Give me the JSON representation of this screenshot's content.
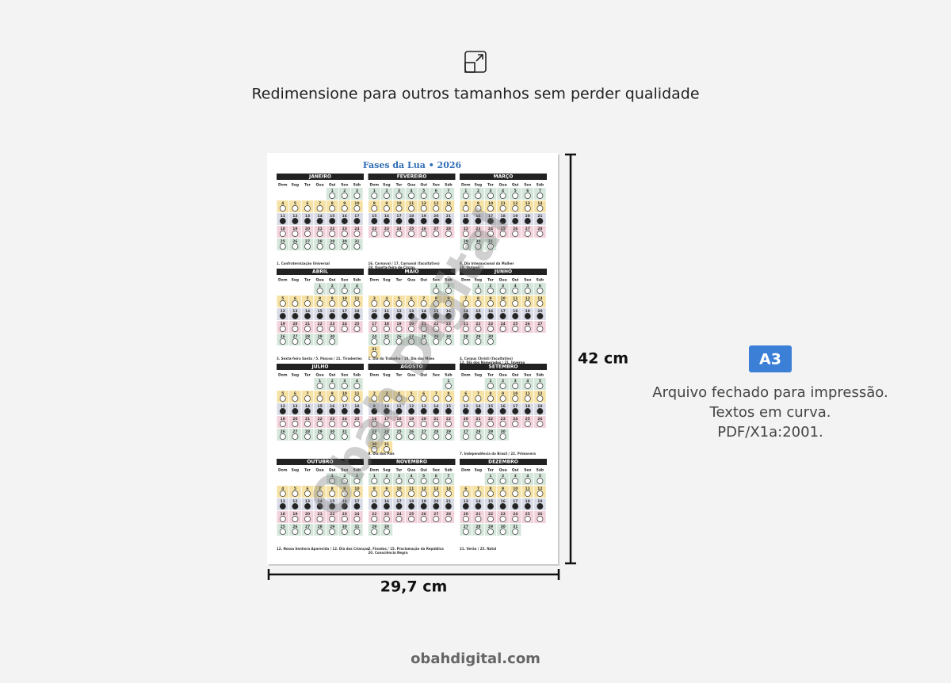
{
  "caption": "Redimensione para outros tamanhos sem perder qualidade",
  "poster": {
    "title": "Fases da Lua • 2026",
    "watermark": "Obah Digital",
    "weekdays": [
      "Dom",
      "Seg",
      "Ter",
      "Qua",
      "Qui",
      "Sex",
      "Sáb"
    ],
    "day_numbers": [
      1,
      2,
      3,
      4,
      5,
      6,
      7,
      8,
      9,
      10,
      11,
      12,
      13,
      14,
      15,
      16,
      17,
      18,
      19,
      20,
      21,
      22,
      23,
      24,
      25,
      26,
      27,
      28,
      29,
      30,
      31
    ],
    "months": [
      {
        "name": "JANEIRO",
        "first_weekday": 4,
        "length": 31,
        "holidays": [
          "1. Confraternização Universal"
        ]
      },
      {
        "name": "FEVEREIRO",
        "first_weekday": 0,
        "length": 28,
        "holidays": [
          "16. Carnaval / 17. Carnaval (facultativo)",
          "18. Quarta-feira de Cinzas"
        ]
      },
      {
        "name": "MARÇO",
        "first_weekday": 0,
        "length": 31,
        "holidays": [
          "8. Dia Internacional da Mulher",
          "20. Outono"
        ]
      },
      {
        "name": "ABRIL",
        "first_weekday": 3,
        "length": 30,
        "holidays": [
          "3. Sexta-feira Santa / 5. Páscoa / 21. Tiradentes"
        ]
      },
      {
        "name": "MAIO",
        "first_weekday": 5,
        "length": 31,
        "holidays": [
          "1. Dia do Trabalho / 10. Dia das Mães"
        ]
      },
      {
        "name": "JUNHO",
        "first_weekday": 1,
        "length": 30,
        "holidays": [
          "4. Corpus Christi (facultativo)",
          "12. Dia dos Namorados / 21. Inverno"
        ]
      },
      {
        "name": "JULHO",
        "first_weekday": 3,
        "length": 31,
        "holidays": []
      },
      {
        "name": "AGOSTO",
        "first_weekday": 6,
        "length": 31,
        "holidays": [
          "9. Dia dos Pais"
        ]
      },
      {
        "name": "SETEMBRO",
        "first_weekday": 2,
        "length": 30,
        "holidays": [
          "7. Independência do Brasil / 22. Primavera"
        ]
      },
      {
        "name": "OUTUBRO",
        "first_weekday": 4,
        "length": 31,
        "holidays": [
          "12. Nossa Senhora Aparecida / 12. Dia das Crianças"
        ]
      },
      {
        "name": "NOVEMBRO",
        "first_weekday": 0,
        "length": 30,
        "holidays": [
          "2. Finados / 15. Proclamação da República",
          "20. Consciência Negra"
        ]
      },
      {
        "name": "DEZEMBRO",
        "first_weekday": 2,
        "length": 31,
        "holidays": [
          "21. Verão / 25. Natal"
        ]
      }
    ]
  },
  "height_label": "42 cm",
  "width_label": "29,7 cm",
  "badge": "A3",
  "notes": [
    "Arquivo fechado para impressão.",
    "Textos em curva.",
    "PDF/X1a:2001."
  ],
  "footer": "obahdigital.com"
}
